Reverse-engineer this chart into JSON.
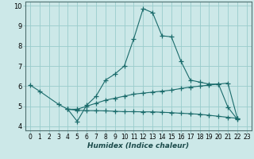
{
  "xlabel": "Humidex (Indice chaleur)",
  "bg_color": "#cce8e8",
  "grid_color": "#99cccc",
  "line_color": "#1a6b6b",
  "xlim": [
    -0.5,
    23.5
  ],
  "ylim": [
    3.8,
    10.2
  ],
  "xticks": [
    0,
    1,
    2,
    3,
    4,
    5,
    6,
    7,
    8,
    9,
    10,
    11,
    12,
    13,
    14,
    15,
    16,
    17,
    18,
    19,
    20,
    21,
    22,
    23
  ],
  "yticks": [
    4,
    5,
    6,
    7,
    8,
    9,
    10
  ],
  "line1_x": [
    0,
    1,
    3,
    4,
    5,
    6,
    7,
    8,
    9,
    10,
    11,
    12,
    13,
    14,
    15,
    16,
    17,
    18,
    19,
    20,
    21,
    22
  ],
  "line1_y": [
    6.05,
    5.75,
    5.1,
    4.85,
    4.25,
    5.05,
    5.5,
    6.3,
    6.6,
    7.0,
    8.35,
    9.85,
    9.65,
    8.5,
    8.45,
    7.25,
    6.3,
    6.2,
    6.1,
    6.1,
    4.95,
    4.35
  ],
  "line2_x": [
    4,
    5,
    6,
    7,
    8,
    9,
    10,
    11,
    12,
    13,
    14,
    15,
    16,
    17,
    18,
    19,
    20,
    21,
    22
  ],
  "line2_y": [
    4.85,
    4.8,
    4.78,
    4.78,
    4.77,
    4.75,
    4.73,
    4.73,
    4.72,
    4.72,
    4.7,
    4.68,
    4.65,
    4.63,
    4.6,
    4.55,
    4.5,
    4.45,
    4.4
  ],
  "line3_x": [
    4,
    5,
    6,
    7,
    8,
    9,
    10,
    11,
    12,
    13,
    14,
    15,
    16,
    17,
    18,
    19,
    20,
    21,
    22
  ],
  "line3_y": [
    4.85,
    4.85,
    5.0,
    5.15,
    5.3,
    5.4,
    5.5,
    5.6,
    5.65,
    5.7,
    5.75,
    5.8,
    5.88,
    5.95,
    6.0,
    6.05,
    6.1,
    6.15,
    4.4
  ]
}
